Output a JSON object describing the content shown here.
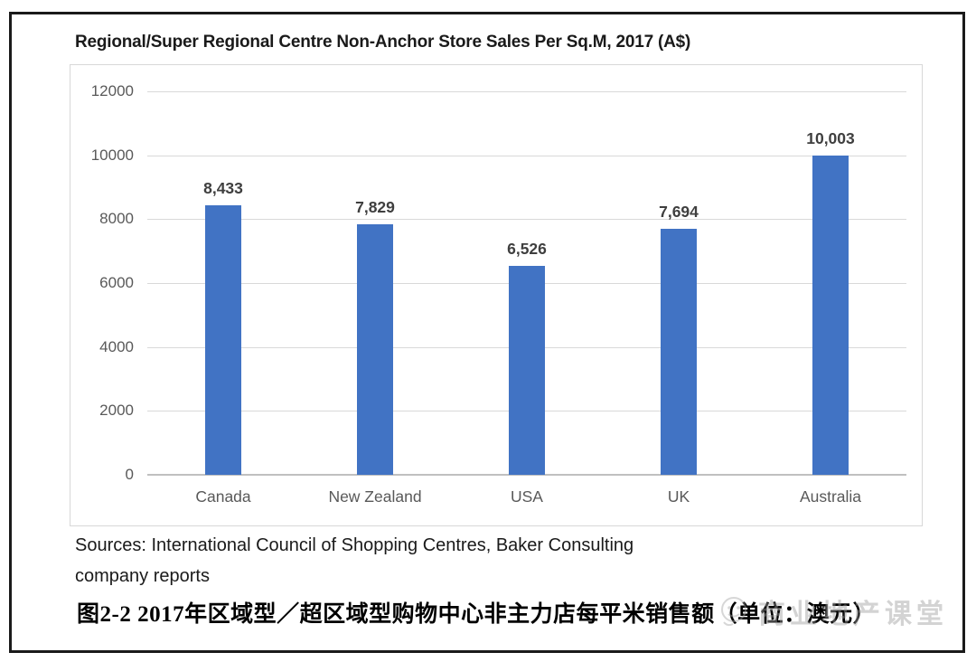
{
  "figure": {
    "source_note": "Sources: International Council of Shopping Centres, Baker Consulting\ncompany reports",
    "caption": "图2-2 2017年区域型／超区域型购物中心非主力店每平米销售额（单位：澳元）",
    "watermark_text": "商业地产课堂"
  },
  "chart_data": {
    "type": "bar",
    "title": "Regional/Super Regional Centre Non-Anchor Store Sales Per Sq.M, 2017 (A$)",
    "categories": [
      "Canada",
      "New Zealand",
      "USA",
      "UK",
      "Australia"
    ],
    "values": [
      8433,
      7829,
      6526,
      7694,
      10003
    ],
    "value_labels": [
      "8,433",
      "7,829",
      "6,526",
      "7,694",
      "10,003"
    ],
    "xlabel": "",
    "ylabel": "",
    "ylim": [
      0,
      12000
    ],
    "ytick_step": 2000,
    "grid": true,
    "legend": "none",
    "bar_color": "#4173C4"
  },
  "colors": {
    "bar": "#4173C4",
    "gridline": "#d9d9d9",
    "axis_labels": "#595959",
    "data_labels": "#3f3f3f",
    "text": "#1a1a1a",
    "frame_border": "#1a1a1a",
    "chart_border": "#d8d8d8",
    "watermark": "#9e9e9e"
  }
}
